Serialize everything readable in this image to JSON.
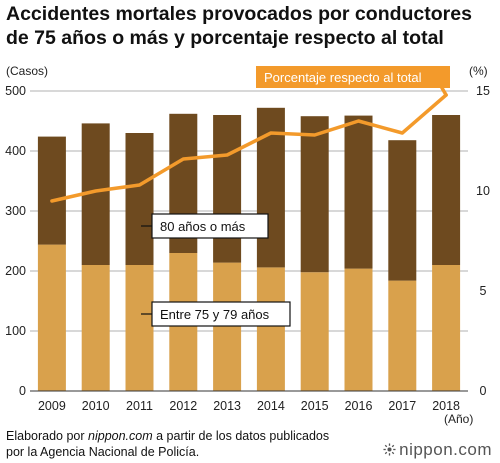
{
  "title_line1": "Accidentes mortales provocados por conductores",
  "title_line2": "de 75 años o más y porcentaje respecto al total",
  "left_unit": "(Casos)",
  "right_unit": "(%)",
  "x_unit": "(Año)",
  "footer": {
    "line1_prefix": "Elaborado por ",
    "line1_source": "nippon.com",
    "line1_suffix": " a partir de los datos publicados",
    "line2": "por la Agencia Nacional de Policía."
  },
  "logo_text": "nippon.com",
  "colors": {
    "bar_75_79": "#d9a14c",
    "bar_80_plus": "#6e4a1f",
    "line": "#f39a2b",
    "grid": "#999999",
    "label_box_border": "#111111",
    "line_label_bg": "#f39a2b"
  },
  "chart_data": {
    "type": "bar",
    "stacked": true,
    "categories": [
      "2009",
      "2010",
      "2011",
      "2012",
      "2013",
      "2014",
      "2015",
      "2016",
      "2017",
      "2018"
    ],
    "series": [
      {
        "name": "Entre 75 y 79 años",
        "values": [
          244,
          210,
          210,
          230,
          214,
          206,
          198,
          204,
          184,
          210
        ]
      },
      {
        "name": "80 años o más",
        "values": [
          180,
          236,
          220,
          232,
          246,
          266,
          260,
          255,
          234,
          250
        ]
      }
    ],
    "line_series": {
      "name": "Porcentaje respecto al total",
      "axis": "right",
      "values": [
        9.5,
        10.0,
        10.3,
        11.6,
        11.8,
        12.9,
        12.8,
        13.5,
        12.9,
        14.8
      ]
    },
    "ylim": [
      0,
      500
    ],
    "yticks": [
      0,
      100,
      200,
      300,
      400,
      500
    ],
    "y2lim": [
      0,
      15
    ],
    "y2ticks": [
      0,
      5,
      10,
      15
    ],
    "grid": true,
    "legend": "in-plot labels"
  }
}
